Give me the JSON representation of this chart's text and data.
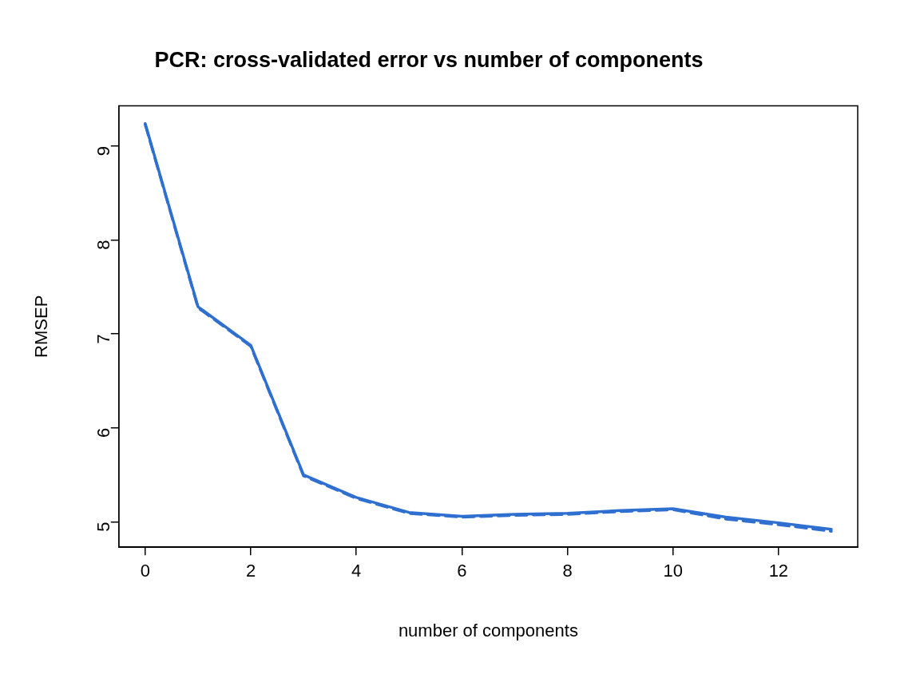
{
  "chart_data": {
    "type": "line",
    "title": "PCR: cross-validated error vs number of components",
    "xlabel": "number of components",
    "ylabel": "RMSEP",
    "x": [
      0,
      1,
      2,
      3,
      4,
      5,
      6,
      7,
      8,
      9,
      10,
      11,
      12,
      13
    ],
    "series": [
      {
        "color": "#2f6fd0",
        "line_style": "solid",
        "values": [
          9.24,
          7.29,
          6.88,
          5.5,
          5.26,
          5.1,
          5.06,
          5.08,
          5.09,
          5.12,
          5.14,
          5.05,
          4.99,
          4.92
        ]
      },
      {
        "color": "#2f6fd0",
        "line_style": "dashed",
        "values": [
          9.23,
          7.28,
          6.87,
          5.49,
          5.25,
          5.09,
          5.05,
          5.07,
          5.08,
          5.11,
          5.13,
          5.03,
          4.97,
          4.9
        ]
      }
    ],
    "xlim": [
      -0.5,
      13.5
    ],
    "ylim": [
      4.73,
      9.43
    ],
    "xticks": [
      0,
      2,
      4,
      6,
      8,
      10,
      12
    ],
    "yticks": [
      5,
      6,
      7,
      8,
      9
    ],
    "grid": false,
    "marker": "none"
  }
}
